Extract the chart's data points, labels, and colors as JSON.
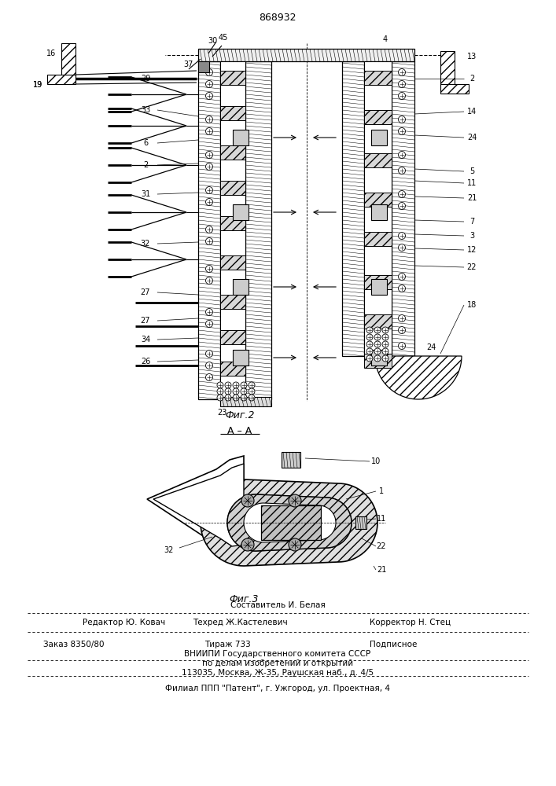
{
  "patent_number": "868932",
  "bg": "#ffffff",
  "fig2_label": "Фиг.2",
  "fig3_label": "Фиг.3",
  "section_label": "А – А",
  "footer_col1_line1": "Составитель И. Белая",
  "footer_col0_line2": "Редактор Ю. Ковач",
  "footer_col1_line2": "Техред Ж.Кастелевич",
  "footer_col2_line2": "Корректор Н. Стец",
  "footer_col0_line3": "Заказ 8350/80",
  "footer_col1_line3": "Тираж 733",
  "footer_col2_line3": "Подписное",
  "footer_line4": "ВНИИПИ Государственного комитета СССР",
  "footer_line5": "по делам изобретений и открытий",
  "footer_line6": "113035, Москва, Ж-35, Раушская наб., д. 4/5",
  "footer_line7": "Филиал ППП \"Патент\", г. Ужгород, ул. Проектная, 4"
}
